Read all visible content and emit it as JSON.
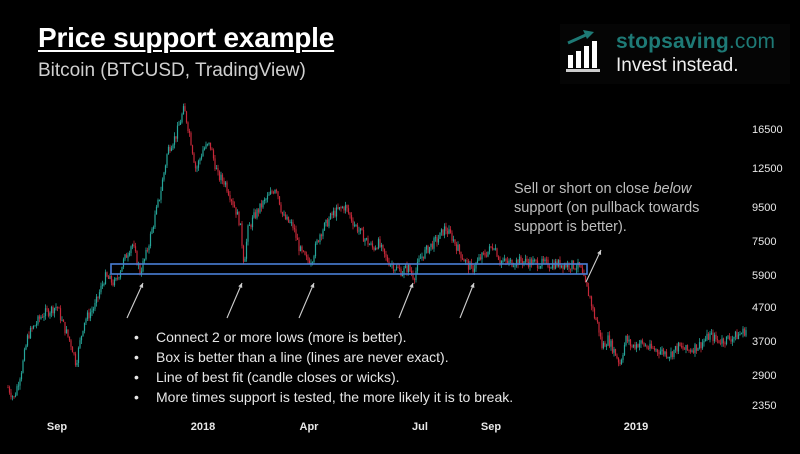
{
  "header": {
    "title": "Price support example",
    "subtitle": "Bitcoin (BTCUSD, TradingView)"
  },
  "logo": {
    "brand": "stopsaving",
    "brand_suffix": ".com",
    "tagline": "Invest instead.",
    "icon": "bar-chart-growth-icon",
    "brand_color": "#1e7a76"
  },
  "annotation": {
    "text_before": "Sell or short on close ",
    "text_em": "below",
    "text_after": " support (on pullback towards support is better)."
  },
  "bullets": [
    "Connect 2 or more lows (more is better).",
    "Box is better than a line (lines are never exact).",
    "Line of best fit (candle closes or wicks).",
    "More times support is tested, the more likely it is to break."
  ],
  "colors": {
    "up_candle": "#26a69a",
    "down_candle": "#c62839",
    "support_box": "#4a7fd6",
    "arrow": "#cfcfcf",
    "background": "#000000"
  },
  "chart_data": {
    "type": "candlestick",
    "title": "Price support example",
    "subtitle": "Bitcoin (BTCUSD, TradingView)",
    "xlabel": "",
    "ylabel": "",
    "y_scale": "log",
    "y_ticks": [
      16500,
      12500,
      9500,
      7500,
      5900,
      4700,
      3700,
      2900,
      2350
    ],
    "x_ticks": [
      "Sep",
      "2018",
      "Apr",
      "Jul",
      "Sep",
      "2019"
    ],
    "x_tick_positions": [
      57,
      203,
      309,
      420,
      491,
      636
    ],
    "ylim": [
      2200,
      19500
    ],
    "support_zone": {
      "low": 5950,
      "high": 6450,
      "label": "support box"
    },
    "support_touches": 5,
    "approx_path": {
      "x": [
        "Aug 2017",
        "Sep 2017",
        "Oct 2017",
        "Nov 2017",
        "Dec 2017",
        "Jan 2018",
        "Feb 2018",
        "Mar 2018",
        "Apr 2018",
        "May 2018",
        "Jun 2018",
        "Jul 2018",
        "Aug 2018",
        "Sep 2018",
        "Oct 2018",
        "Nov 2018",
        "Dec 2018",
        "Jan 2019",
        "Feb 2019"
      ],
      "close": [
        2700,
        4300,
        5200,
        7500,
        17500,
        11000,
        10000,
        7000,
        9300,
        7500,
        6300,
        8200,
        6500,
        6500,
        6400,
        4000,
        3300,
        3500,
        4000
      ]
    },
    "grid": false,
    "legend": "none"
  }
}
